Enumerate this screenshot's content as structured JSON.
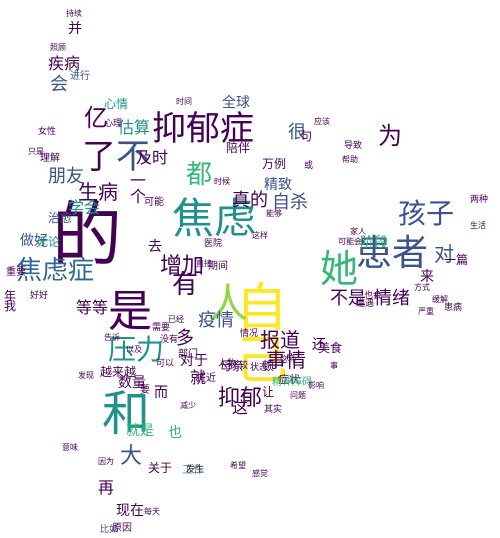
{
  "cloud": {
    "palette": {
      "purple": "#440154",
      "indigo": "#3b528b",
      "blue": "#31688e",
      "teal": "#21918c",
      "green": "#35b779",
      "lime": "#90d743",
      "yellow": "#fde725"
    },
    "words": [
      "的",
      "自己",
      "患者",
      "是",
      "和",
      "焦虑",
      "人",
      "抑郁症",
      "她",
      "孩子",
      "了",
      "不",
      "焦虑症",
      "有",
      "压力",
      "抑郁",
      "都",
      "事情",
      "增加",
      "报道",
      "疫情",
      "为",
      "不是",
      "情绪",
      "大",
      "就是",
      "也",
      "朋友",
      "亿",
      "会",
      "疾病",
      "全球",
      "很",
      "自杀",
      "真的",
      "做好",
      "无论",
      "治愈",
      "阶段",
      "生病",
      "估算",
      "及时",
      "精致",
      "对",
      "一个",
      "多",
      "就",
      "这",
      "去",
      "再",
      "现在",
      "数量",
      "而",
      "并",
      "工作",
      "关于",
      "母亲",
      "美食",
      "来",
      "对于",
      "等等",
      "一篇",
      "学会",
      "越来越",
      "还",
      "让",
      "症状",
      "两种",
      "将近",
      "可能",
      "期间",
      "心情",
      "进行",
      "理解",
      "女性",
      "原因",
      "比如",
      "精神障碍",
      "状态",
      "患病",
      "顿",
      "句",
      "也会",
      "要",
      "年",
      "我",
      "重要",
      "好好",
      "需要",
      "没有",
      "可以",
      "这种",
      "或",
      "陪伴",
      "万例",
      "导致",
      "发生",
      "部门",
      "医院",
      "心理",
      "遭遇",
      "情况",
      "以及",
      "人数",
      "比较",
      "减少",
      "其实",
      "每天",
      "事",
      "方式",
      "缓解",
      "问题",
      "影响",
      "时候",
      "照顾",
      "持续",
      "只是",
      "因为",
      "已经",
      "直接",
      "这样",
      "能够",
      "应该",
      "帮助",
      "生活",
      "严重",
      "感觉",
      "希望",
      "告诉",
      "发现",
      "意味",
      "可能会",
      "家人",
      "时间",
      "世界",
      "调查",
      "研究",
      "数据"
    ]
  }
}
